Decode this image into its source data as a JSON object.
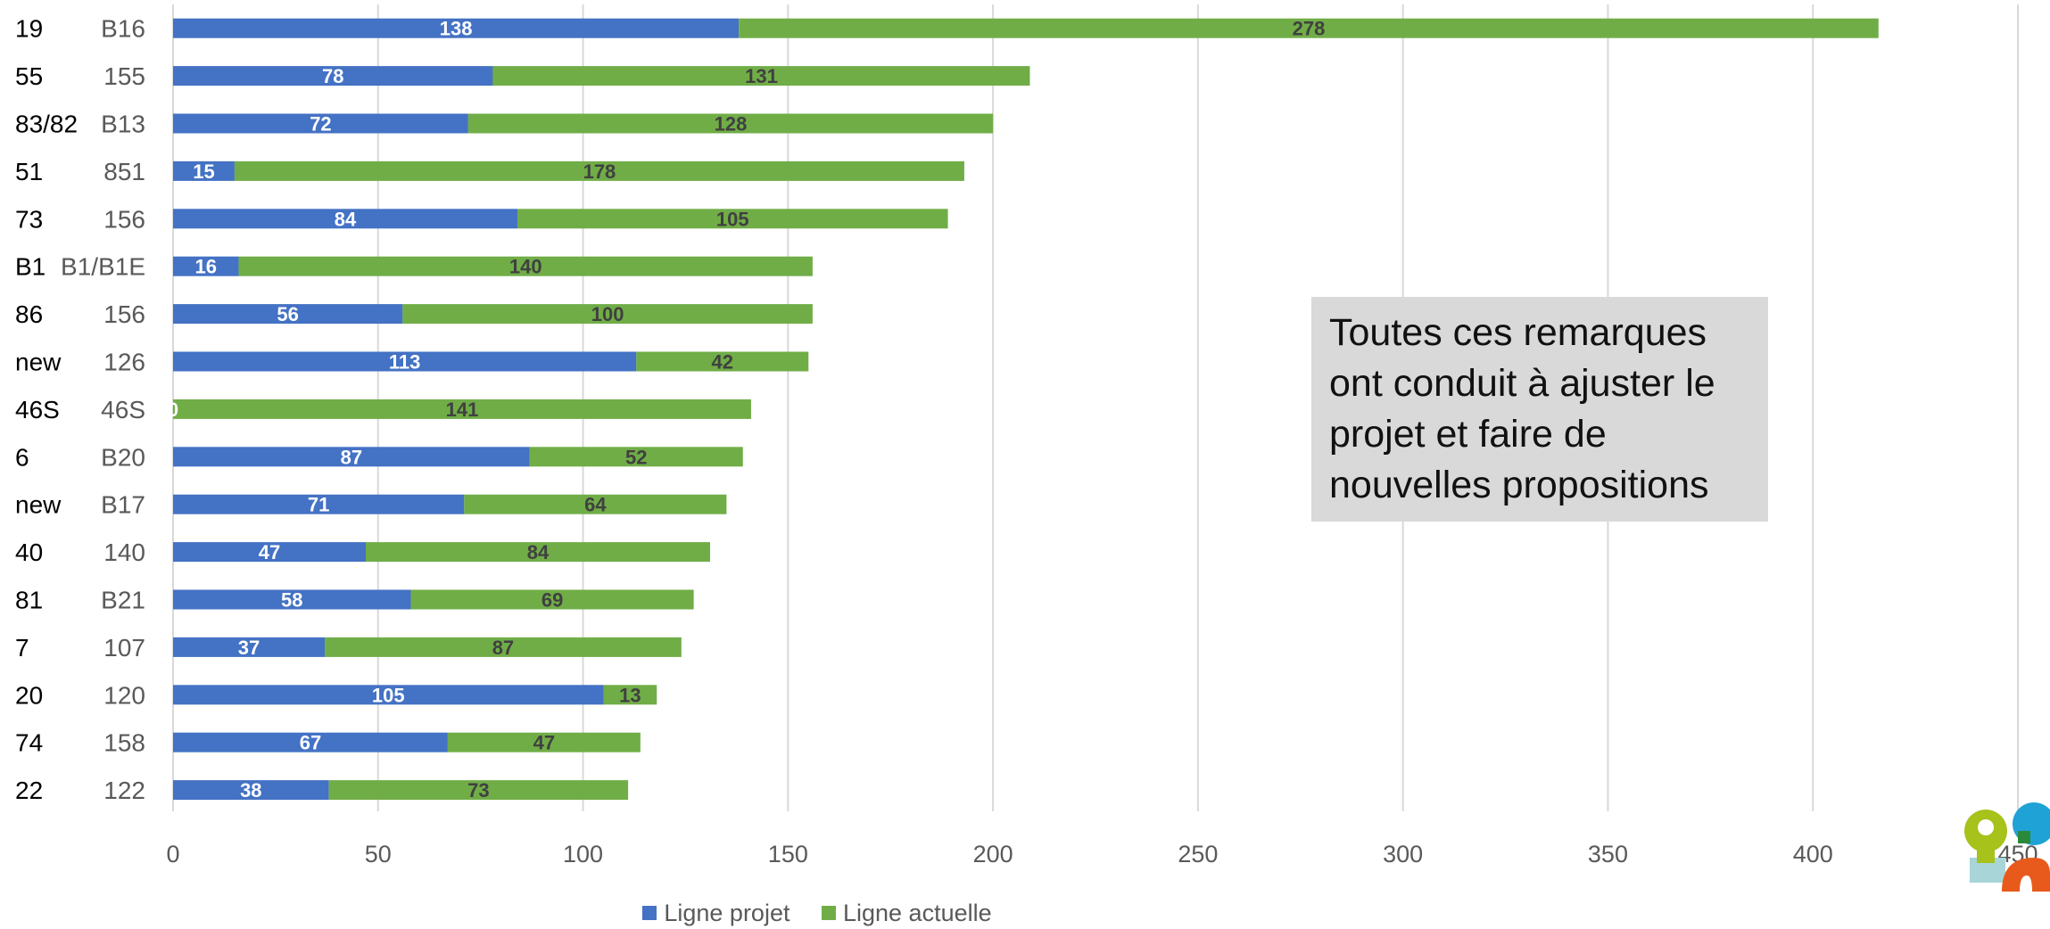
{
  "chart_data": {
    "type": "bar",
    "orientation": "horizontal",
    "stacked": true,
    "categories": [
      {
        "route": "19",
        "line": "B16"
      },
      {
        "route": "55",
        "line": "155"
      },
      {
        "route": "83/82",
        "line": "B13"
      },
      {
        "route": "51",
        "line": "851"
      },
      {
        "route": "73",
        "line": "156"
      },
      {
        "route": "B1",
        "line": "B1/B1E"
      },
      {
        "route": "86",
        "line": "156"
      },
      {
        "route": "new",
        "line": "126"
      },
      {
        "route": "46S",
        "line": "46S"
      },
      {
        "route": "6",
        "line": "B20"
      },
      {
        "route": "new",
        "line": "B17"
      },
      {
        "route": "40",
        "line": "140"
      },
      {
        "route": "81",
        "line": "B21"
      },
      {
        "route": "7",
        "line": "107"
      },
      {
        "route": "20",
        "line": "120"
      },
      {
        "route": "74",
        "line": "158"
      },
      {
        "route": "22",
        "line": "122"
      }
    ],
    "series": [
      {
        "name": "Ligne projet",
        "color": "#4472c4",
        "values": [
          138,
          78,
          72,
          15,
          84,
          16,
          56,
          113,
          0,
          87,
          71,
          47,
          58,
          37,
          105,
          67,
          38
        ]
      },
      {
        "name": "Ligne actuelle",
        "color": "#70ad47",
        "values": [
          278,
          131,
          128,
          178,
          105,
          140,
          100,
          42,
          141,
          52,
          64,
          84,
          69,
          87,
          13,
          47,
          73
        ]
      }
    ],
    "xlim": [
      0,
      450
    ],
    "xticks": [
      0,
      50,
      100,
      150,
      200,
      250,
      300,
      350,
      400,
      450
    ],
    "grid": true,
    "legend_position": "bottom"
  },
  "callout": {
    "text": "Toutes ces remarques\nont conduit à ajuster le\nprojet et faire de\nnouvelles propositions"
  },
  "colors": {
    "grid": "#d9d9d9",
    "axis_text": "#595959",
    "category_text": "#000000",
    "projet_label": "#ffffff",
    "actuelle_label": "#404040"
  }
}
